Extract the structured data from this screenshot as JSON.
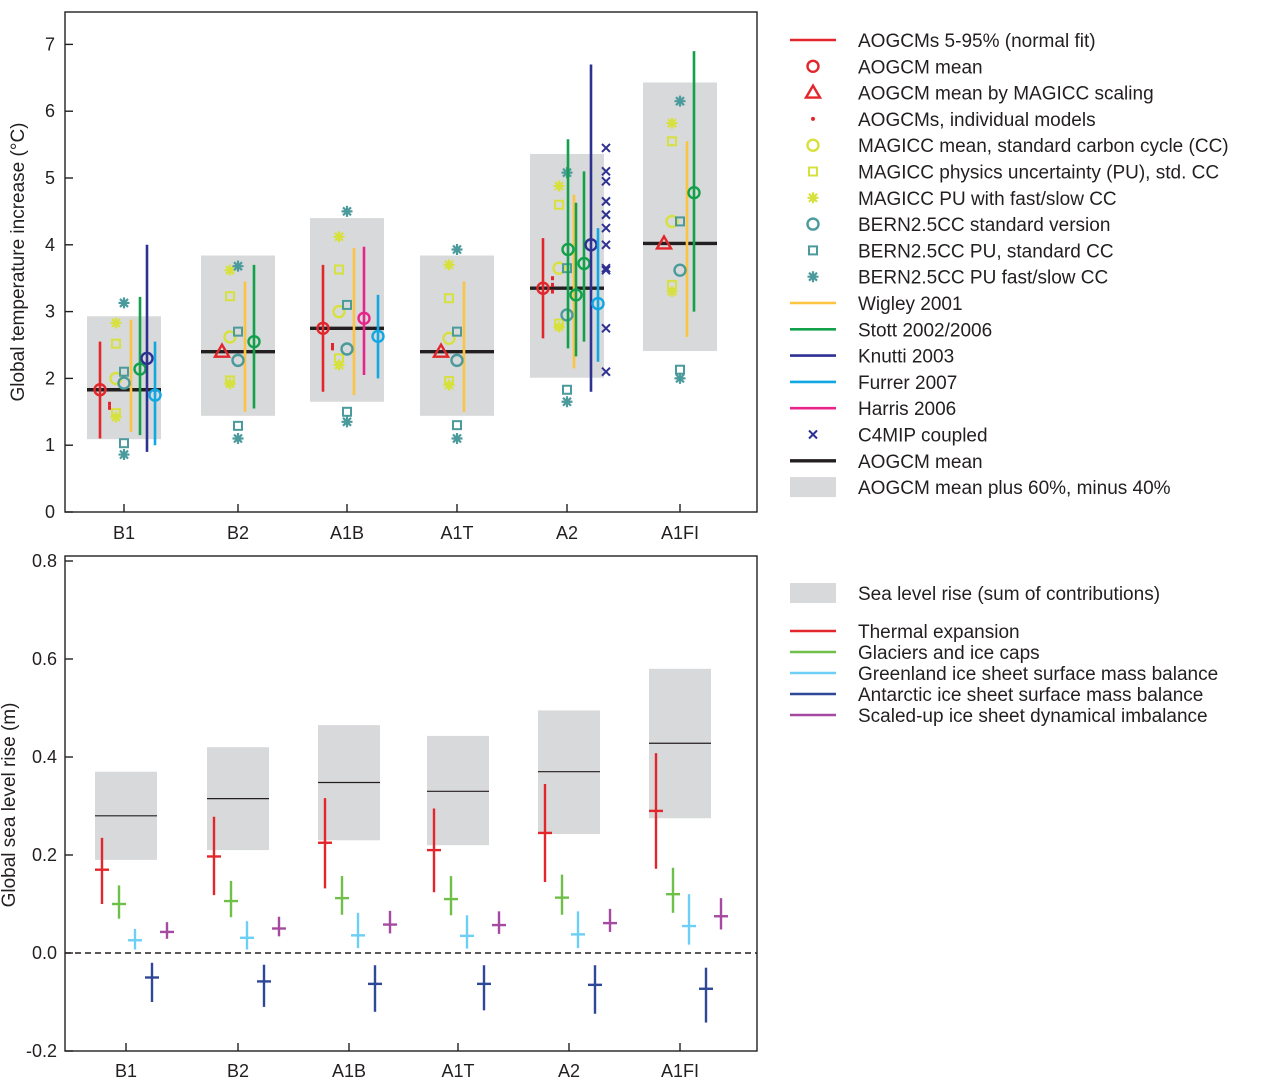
{
  "chart_data": [
    {
      "type": "range",
      "ylabel": "Global temperature increase (°C)",
      "ylim": [
        0,
        7.5
      ],
      "yticks": [
        0,
        1,
        2,
        3,
        4,
        5,
        6,
        7
      ],
      "categories": [
        "B1",
        "B2",
        "A1B",
        "A1T",
        "A2",
        "A1FI"
      ],
      "aogcm_mean": [
        1.83,
        2.4,
        2.75,
        2.4,
        3.35,
        4.02
      ],
      "gray_range": [
        [
          1.09,
          2.93
        ],
        [
          1.44,
          3.84
        ],
        [
          1.65,
          4.4
        ],
        [
          1.44,
          3.84
        ],
        [
          2.01,
          5.36
        ],
        [
          2.41,
          6.43
        ]
      ],
      "aogcm_5_95": [
        [
          1.1,
          2.55
        ],
        null,
        [
          1.8,
          3.7
        ],
        null,
        [
          2.6,
          4.1
        ],
        null
      ],
      "aogcm_mean_marker": [
        1.83,
        null,
        2.75,
        null,
        3.35,
        null
      ],
      "magicc_scaling_mean": [
        null,
        2.4,
        null,
        2.4,
        null,
        4.02
      ],
      "aogcm_individual": [
        [
          1.56,
          1.62
        ],
        [],
        [
          2.45,
          2.5
        ],
        [],
        [
          3.3,
          3.4,
          3.5
        ],
        []
      ],
      "magicc_mean_cc": [
        2.0,
        2.62,
        3.0,
        2.6,
        3.65,
        4.35
      ],
      "magicc_pu_std_cc": [
        [
          1.48,
          2.52
        ],
        [
          1.97,
          3.23
        ],
        [
          2.3,
          3.63
        ],
        [
          1.96,
          3.2
        ],
        [
          2.82,
          4.6
        ],
        [
          3.4,
          5.55
        ]
      ],
      "magicc_pu_fast_slow": [
        [
          1.42,
          2.83
        ],
        [
          1.92,
          3.62
        ],
        [
          2.2,
          4.12
        ],
        [
          1.9,
          3.7
        ],
        [
          2.77,
          4.88
        ],
        [
          3.3,
          5.82
        ]
      ],
      "bern_std": [
        1.93,
        2.27,
        2.44,
        2.27,
        2.95,
        3.62
      ],
      "bern_pu_std": [
        [
          1.03,
          2.1
        ],
        [
          1.29,
          2.7
        ],
        [
          1.5,
          3.1
        ],
        [
          1.3,
          2.7
        ],
        [
          1.83,
          3.65
        ],
        [
          2.13,
          4.35
        ]
      ],
      "bern_pu_fast_slow": [
        [
          0.86,
          3.13
        ],
        [
          1.1,
          3.68
        ],
        [
          1.35,
          4.5
        ],
        [
          1.1,
          3.93
        ],
        [
          1.65,
          5.08
        ],
        [
          2.0,
          6.15
        ]
      ],
      "wigley_2001": [
        [
          1.2,
          2.88
        ],
        [
          1.5,
          3.45
        ],
        [
          1.75,
          3.95
        ],
        [
          1.5,
          3.45
        ],
        [
          2.15,
          4.75
        ],
        [
          2.62,
          5.55
        ]
      ],
      "stott": [
        {
          "mean": 2.14,
          "range": [
            1.15,
            3.22
          ]
        },
        {
          "mean": 2.55,
          "range": [
            1.55,
            3.7
          ]
        },
        null,
        null,
        {
          "means": [
            3.93,
            3.25,
            3.72
          ],
          "ranges": [
            [
              2.45,
              5.58
            ],
            [
              2.33,
              4.63
            ],
            [
              2.55,
              5.1
            ]
          ]
        },
        {
          "mean": 4.78,
          "range": [
            3.0,
            6.9
          ]
        }
      ],
      "knutti_2003": [
        {
          "mean": 2.3,
          "range": [
            0.9,
            4.0
          ]
        },
        null,
        null,
        null,
        {
          "mean": 4.0,
          "range": [
            1.8,
            6.7
          ]
        },
        null
      ],
      "furrer_2007": [
        {
          "mean": 1.75,
          "range": [
            1.0,
            2.55
          ]
        },
        null,
        {
          "mean": 2.63,
          "range": [
            2.0,
            3.25
          ]
        },
        null,
        {
          "mean": 3.12,
          "range": [
            2.25,
            4.25
          ]
        },
        null
      ],
      "harris_2006": [
        null,
        null,
        {
          "mean": 2.9,
          "range": [
            2.05,
            3.97
          ]
        },
        null,
        null,
        null
      ],
      "c4mip_coupled": [
        null,
        null,
        null,
        null,
        [
          5.45,
          5.1,
          4.95,
          4.65,
          4.45,
          4.25,
          4.0,
          3.65,
          3.62,
          2.75,
          2.1
        ],
        null
      ],
      "legend": [
        "AOGCMs 5-95% (normal fit)",
        "AOGCM mean",
        "AOGCM mean by MAGICC scaling",
        "AOGCMs, individual models",
        "MAGICC mean, standard carbon cycle (CC)",
        "MAGICC physics uncertainty (PU), std. CC",
        "MAGICC PU with fast/slow CC",
        "BERN2.5CC standard version",
        "BERN2.5CC PU, standard CC",
        "BERN2.5CC PU fast/slow CC",
        "Wigley 2001",
        "Stott 2002/2006",
        "Knutti 2003",
        "Furrer 2007",
        "Harris 2006",
        "C4MIP coupled",
        "AOGCM mean",
        "AOGCM mean plus 60%, minus 40%"
      ],
      "legend_placement": "right"
    },
    {
      "type": "range",
      "ylabel": "Global sea level rise (m)",
      "ylim": [
        -0.22,
        0.82
      ],
      "yticks": [
        "-0.2",
        "0.0",
        "0.2",
        "0.4",
        "0.6",
        "0.8"
      ],
      "categories": [
        "B1",
        "B2",
        "A1B",
        "A1T",
        "A2",
        "A1FI"
      ],
      "sea_level_sum": [
        {
          "mid": 0.28,
          "range": [
            0.19,
            0.37
          ]
        },
        {
          "mid": 0.315,
          "range": [
            0.21,
            0.42
          ]
        },
        {
          "mid": 0.348,
          "range": [
            0.23,
            0.465
          ]
        },
        {
          "mid": 0.33,
          "range": [
            0.22,
            0.443
          ]
        },
        {
          "mid": 0.37,
          "range": [
            0.243,
            0.495
          ]
        },
        {
          "mid": 0.428,
          "range": [
            0.275,
            0.58
          ]
        }
      ],
      "series": [
        {
          "name": "Thermal expansion",
          "values": [
            [
              0.17,
              0.1,
              0.235
            ],
            [
              0.197,
              0.118,
              0.278
            ],
            [
              0.225,
              0.132,
              0.316
            ],
            [
              0.21,
              0.124,
              0.295
            ],
            [
              0.245,
              0.145,
              0.345
            ],
            [
              0.29,
              0.172,
              0.408
            ]
          ]
        },
        {
          "name": "Glaciers and ice caps",
          "values": [
            [
              0.1,
              0.07,
              0.138
            ],
            [
              0.106,
              0.073,
              0.147
            ],
            [
              0.112,
              0.078,
              0.157
            ],
            [
              0.11,
              0.077,
              0.157
            ],
            [
              0.113,
              0.078,
              0.16
            ],
            [
              0.12,
              0.082,
              0.174
            ]
          ]
        },
        {
          "name": "Greenland ice sheet surface mass balance",
          "values": [
            [
              0.026,
              0.007,
              0.049
            ],
            [
              0.031,
              0.007,
              0.065
            ],
            [
              0.036,
              0.01,
              0.082
            ],
            [
              0.035,
              0.009,
              0.077
            ],
            [
              0.038,
              0.01,
              0.085
            ],
            [
              0.055,
              0.017,
              0.12
            ]
          ]
        },
        {
          "name": "Antarctic ice sheet surface mass balance",
          "values": [
            [
              -0.05,
              -0.1,
              -0.02
            ],
            [
              -0.058,
              -0.11,
              -0.024
            ],
            [
              -0.063,
              -0.12,
              -0.025
            ],
            [
              -0.063,
              -0.117,
              -0.025
            ],
            [
              -0.065,
              -0.124,
              -0.025
            ],
            [
              -0.073,
              -0.142,
              -0.03
            ]
          ]
        },
        {
          "name": "Scaled-up ice sheet dynamical imbalance",
          "values": [
            [
              0.043,
              0.029,
              0.063
            ],
            [
              0.05,
              0.034,
              0.074
            ],
            [
              0.058,
              0.04,
              0.086
            ],
            [
              0.057,
              0.039,
              0.085
            ],
            [
              0.061,
              0.043,
              0.09
            ],
            [
              0.075,
              0.048,
              0.112
            ]
          ]
        }
      ],
      "legend": [
        "Sea level rise (sum of contributions)",
        "Thermal expansion",
        "Glaciers and ice caps",
        "Greenland ice sheet surface mass balance",
        "Antarctic ice sheet surface mass balance",
        "Scaled-up ice sheet dynamical imbalance"
      ],
      "legend_placement": "right"
    }
  ],
  "colors": {
    "aogcm": "#e3262b",
    "magicc": "#d7e13e",
    "bern": "#4b9a9c",
    "wigley": "#fcc441",
    "stott": "#12a14a",
    "knutti": "#2e3192",
    "furrer": "#10a7e3",
    "harris": "#e8248a",
    "c4mip": "#2e3192",
    "mean": "#231f20",
    "range_fill": "#d8d9da",
    "thermal": "#e3262b",
    "glaciers": "#6ec049",
    "greenland": "#6dcff6",
    "antarctic": "#2e4797",
    "dynamical": "#a54aa0"
  }
}
